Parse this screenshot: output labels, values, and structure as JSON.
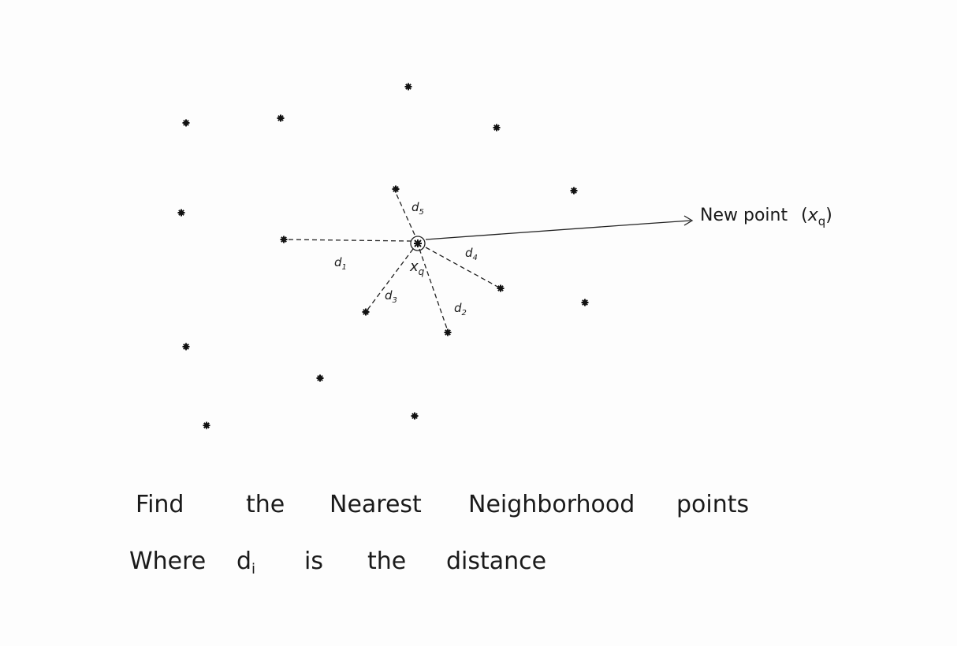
{
  "query_point_label": "x",
  "query_point_subscript": "q",
  "new_point": {
    "text": "New point",
    "symbol": "x",
    "subscript": "q"
  },
  "distance_labels": {
    "d1": "d",
    "d1_sub": "1",
    "d2": "d",
    "d2_sub": "2",
    "d3": "d",
    "d3_sub": "3",
    "d4": "d",
    "d4_sub": "4",
    "d5": "d",
    "d5_sub": "5"
  },
  "caption": {
    "line1_words": [
      "Find",
      "the",
      "Nearest",
      "Neighborhood",
      "points"
    ],
    "line2_words": [
      "Where",
      "d",
      "is",
      "the",
      "distance"
    ],
    "line2_sub": "i"
  },
  "point_marker": "star-icon",
  "ink_color": "#1a1a1a"
}
